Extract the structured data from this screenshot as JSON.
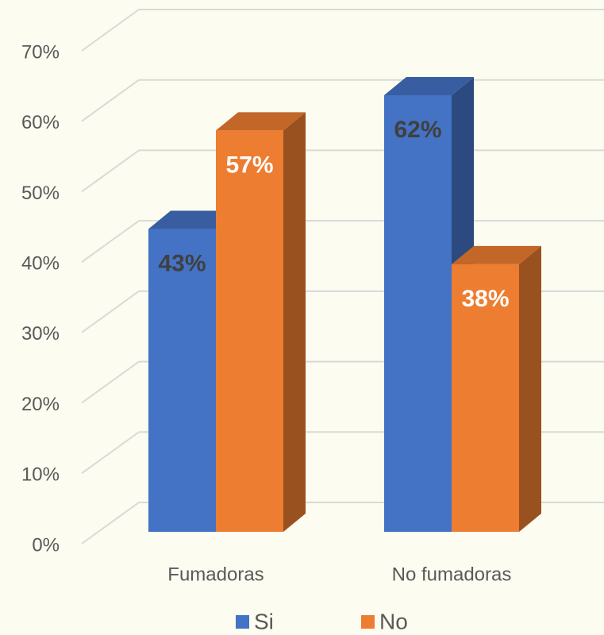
{
  "chart_data": {
    "type": "bar",
    "categories": [
      "Fumadoras",
      "No fumadoras"
    ],
    "series": [
      {
        "name": "Si",
        "color": "#4472c4",
        "label_color": "#404040",
        "values": [
          43,
          62
        ],
        "value_labels": [
          "43%",
          "62%"
        ]
      },
      {
        "name": "No",
        "color": "#ed7d31",
        "label_color": "#ffffff",
        "values": [
          57,
          38
        ],
        "value_labels": [
          "57%",
          "38%"
        ]
      }
    ],
    "ylim": [
      0,
      70
    ],
    "yticks": [
      {
        "value": 0,
        "label": "0%"
      },
      {
        "value": 10,
        "label": "10%"
      },
      {
        "value": 20,
        "label": "20%"
      },
      {
        "value": 30,
        "label": "30%"
      },
      {
        "value": 40,
        "label": "40%"
      },
      {
        "value": 50,
        "label": "50%"
      },
      {
        "value": 60,
        "label": "60%"
      },
      {
        "value": 70,
        "label": "70%"
      }
    ],
    "grid": true,
    "legend": "bottom"
  }
}
